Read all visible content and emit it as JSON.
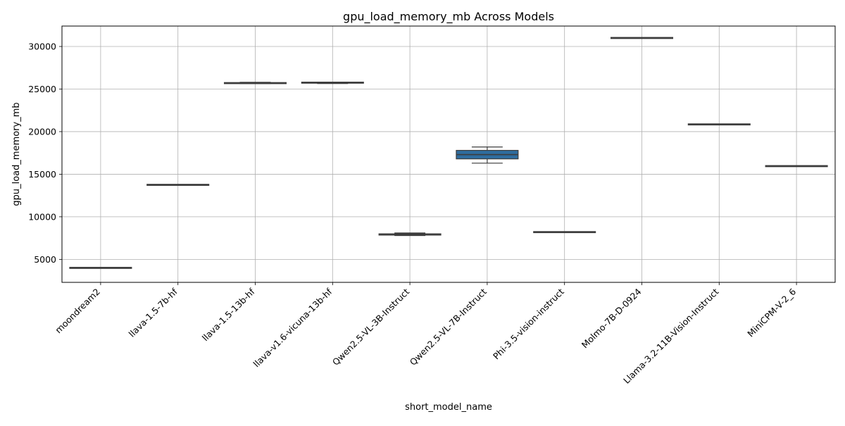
{
  "chart_data": {
    "type": "boxplot",
    "title": "gpu_load_memory_mb Across Models",
    "xlabel": "short_model_name",
    "ylabel": "gpu_load_memory_mb",
    "ylim": [
      2300,
      32400
    ],
    "yticks": [
      5000,
      10000,
      15000,
      20000,
      25000,
      30000
    ],
    "grid": true,
    "box_color": "#2f6d9f",
    "line_color": "#3d3d3d",
    "grid_color": "#b0b0b0",
    "categories": [
      "moondream2",
      "llava-1.5-7b-hf",
      "llava-1.5-13b-hf",
      "llava-v1.6-vicuna-13b-hf",
      "Qwen2.5-VL-3B-Instruct",
      "Qwen2.5-VL-7B-Instruct",
      "Phi-3.5-vision-instruct",
      "Molmo-7B-D-0924",
      "Llama-3.2-11B-Vision-Instruct",
      "MiniCPM-V-2_6"
    ],
    "boxes": [
      {
        "min": 4000,
        "q1": 4000,
        "median": 4000,
        "q3": 4000,
        "max": 4000
      },
      {
        "min": 13750,
        "q1": 13750,
        "median": 13750,
        "q3": 13750,
        "max": 13750
      },
      {
        "min": 25650,
        "q1": 25650,
        "median": 25700,
        "q3": 25750,
        "max": 25800
      },
      {
        "min": 25650,
        "q1": 25700,
        "median": 25750,
        "q3": 25800,
        "max": 25800
      },
      {
        "min": 7800,
        "q1": 7850,
        "median": 7950,
        "q3": 8000,
        "max": 8100
      },
      {
        "min": 16300,
        "q1": 16800,
        "median": 17300,
        "q3": 17800,
        "max": 18200
      },
      {
        "min": 8200,
        "q1": 8200,
        "median": 8200,
        "q3": 8200,
        "max": 8200
      },
      {
        "min": 31000,
        "q1": 31000,
        "median": 31000,
        "q3": 31000,
        "max": 31000
      },
      {
        "min": 20850,
        "q1": 20850,
        "median": 20850,
        "q3": 20850,
        "max": 20850
      },
      {
        "min": 15950,
        "q1": 15950,
        "median": 15950,
        "q3": 15950,
        "max": 15950
      }
    ]
  }
}
